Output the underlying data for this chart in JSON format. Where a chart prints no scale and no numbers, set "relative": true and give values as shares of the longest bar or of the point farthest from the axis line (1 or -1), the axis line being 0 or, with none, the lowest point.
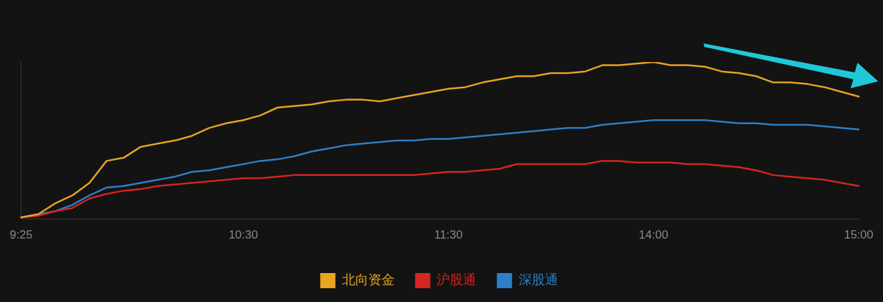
{
  "chart_data": {
    "type": "line",
    "relative": true,
    "legend": "bottom",
    "marker": "none",
    "line_style": "solid",
    "categories": [
      "9:25",
      null,
      null,
      null,
      null,
      null,
      null,
      null,
      null,
      null,
      null,
      null,
      null,
      "10:30",
      null,
      null,
      null,
      null,
      null,
      null,
      null,
      null,
      null,
      null,
      null,
      "11:30",
      null,
      null,
      null,
      null,
      null,
      null,
      null,
      null,
      null,
      null,
      null,
      "14:00",
      null,
      null,
      null,
      null,
      null,
      null,
      null,
      null,
      null,
      null,
      null,
      "15:00"
    ],
    "series": [
      {
        "name": "北向资金",
        "color": "#e8a522",
        "values": [
          0.01,
          0.03,
          0.1,
          0.15,
          0.23,
          0.37,
          0.39,
          0.46,
          0.48,
          0.5,
          0.53,
          0.58,
          0.61,
          0.63,
          0.66,
          0.71,
          0.72,
          0.73,
          0.75,
          0.76,
          0.76,
          0.75,
          0.77,
          0.79,
          0.81,
          0.83,
          0.84,
          0.87,
          0.89,
          0.91,
          0.91,
          0.93,
          0.93,
          0.94,
          0.98,
          0.98,
          0.99,
          1.0,
          0.98,
          0.98,
          0.97,
          0.94,
          0.93,
          0.91,
          0.87,
          0.87,
          0.86,
          0.84,
          0.81,
          0.78
        ]
      },
      {
        "name": "沪股通",
        "color": "#d6261f",
        "values": [
          0.01,
          0.02,
          0.05,
          0.07,
          0.13,
          0.16,
          0.18,
          0.19,
          0.21,
          0.22,
          0.23,
          0.24,
          0.25,
          0.26,
          0.26,
          0.27,
          0.28,
          0.28,
          0.28,
          0.28,
          0.28,
          0.28,
          0.28,
          0.28,
          0.29,
          0.3,
          0.3,
          0.31,
          0.32,
          0.35,
          0.35,
          0.35,
          0.35,
          0.35,
          0.37,
          0.37,
          0.36,
          0.36,
          0.36,
          0.35,
          0.35,
          0.34,
          0.33,
          0.31,
          0.28,
          0.27,
          0.26,
          0.25,
          0.23,
          0.21
        ]
      },
      {
        "name": "深股通",
        "color": "#2f7fc8",
        "values": [
          0.01,
          0.03,
          0.05,
          0.09,
          0.15,
          0.2,
          0.21,
          0.23,
          0.25,
          0.27,
          0.3,
          0.31,
          0.33,
          0.35,
          0.37,
          0.38,
          0.4,
          0.43,
          0.45,
          0.47,
          0.48,
          0.49,
          0.5,
          0.5,
          0.51,
          0.51,
          0.52,
          0.53,
          0.54,
          0.55,
          0.56,
          0.57,
          0.58,
          0.58,
          0.6,
          0.61,
          0.62,
          0.63,
          0.63,
          0.63,
          0.63,
          0.62,
          0.61,
          0.61,
          0.6,
          0.6,
          0.6,
          0.59,
          0.58,
          0.57
        ]
      }
    ]
  }
}
